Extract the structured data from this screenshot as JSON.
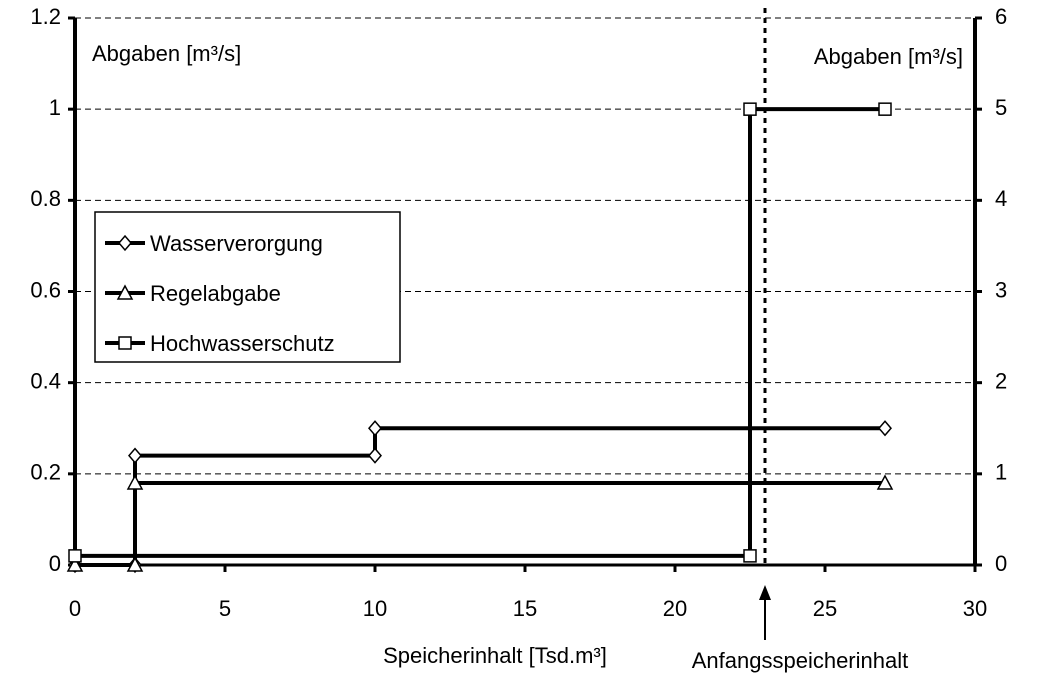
{
  "chart_data": {
    "type": "line",
    "y_label": "Abgaben [m³/s]",
    "y2_label": "Abgaben [m³/s]",
    "x_label": "Speicherinhalt [Tsd.m³]",
    "annotation": {
      "text": "Anfangsspeicherinhalt",
      "x": 23
    },
    "vline": 23,
    "xlim": [
      0,
      30
    ],
    "xticks": [
      0,
      5,
      10,
      15,
      20,
      25,
      30
    ],
    "ylim": [
      0,
      1.2
    ],
    "yticks": [
      0,
      0.2,
      0.4,
      0.6,
      0.8,
      1,
      1.2
    ],
    "y2lim": [
      0,
      6
    ],
    "y2ticks": [
      0,
      1,
      2,
      3,
      4,
      5,
      6
    ],
    "grid": true,
    "legend": "left",
    "series": [
      {
        "name": "Wasserverorgung",
        "color": "#000000",
        "marker": "diamond",
        "x": [
          0,
          2,
          2,
          10,
          10,
          27
        ],
        "values": [
          0,
          0,
          0.24,
          0.24,
          0.3,
          0.3
        ]
      },
      {
        "name": "Regelabgabe",
        "color": "#000000",
        "marker": "triangle",
        "x": [
          0,
          2,
          2,
          27
        ],
        "values": [
          0,
          0,
          0.18,
          0.18
        ]
      },
      {
        "name": "Hochwasserschutz",
        "color": "#000000",
        "marker": "square",
        "x": [
          0,
          22.5,
          22.5,
          27
        ],
        "values": [
          0.02,
          0.02,
          1,
          1
        ]
      }
    ]
  }
}
